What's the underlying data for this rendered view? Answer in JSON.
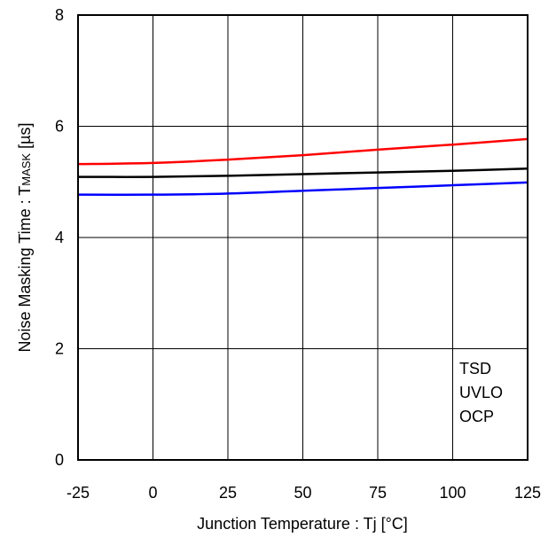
{
  "chart_data": {
    "type": "line",
    "xlabel": "Junction Temperature : Tj [°C]",
    "ylabel_prefix": "Noise Masking Time : T",
    "ylabel_sub": "MASK",
    "ylabel_suffix": " [µs]",
    "xlim": [
      -25,
      125
    ],
    "ylim": [
      0,
      8
    ],
    "xticks": [
      "-25",
      "0",
      "25",
      "50",
      "75",
      "100",
      "125"
    ],
    "yticks": [
      "0",
      "2",
      "4",
      "6",
      "8"
    ],
    "grid": true,
    "legend_position": "bottom-right",
    "series": [
      {
        "name": "TSD",
        "color": "#ff0000",
        "x": [
          -25,
          0,
          25,
          50,
          75,
          100,
          125
        ],
        "y": [
          5.32,
          5.34,
          5.4,
          5.48,
          5.58,
          5.67,
          5.77
        ]
      },
      {
        "name": "UVLO",
        "color": "#000000",
        "x": [
          -25,
          0,
          25,
          50,
          75,
          100,
          125
        ],
        "y": [
          5.09,
          5.09,
          5.11,
          5.14,
          5.17,
          5.2,
          5.24
        ]
      },
      {
        "name": "OCP",
        "color": "#0000ff",
        "x": [
          -25,
          0,
          25,
          50,
          75,
          100,
          125
        ],
        "y": [
          4.77,
          4.77,
          4.79,
          4.84,
          4.89,
          4.94,
          4.99
        ]
      }
    ]
  }
}
